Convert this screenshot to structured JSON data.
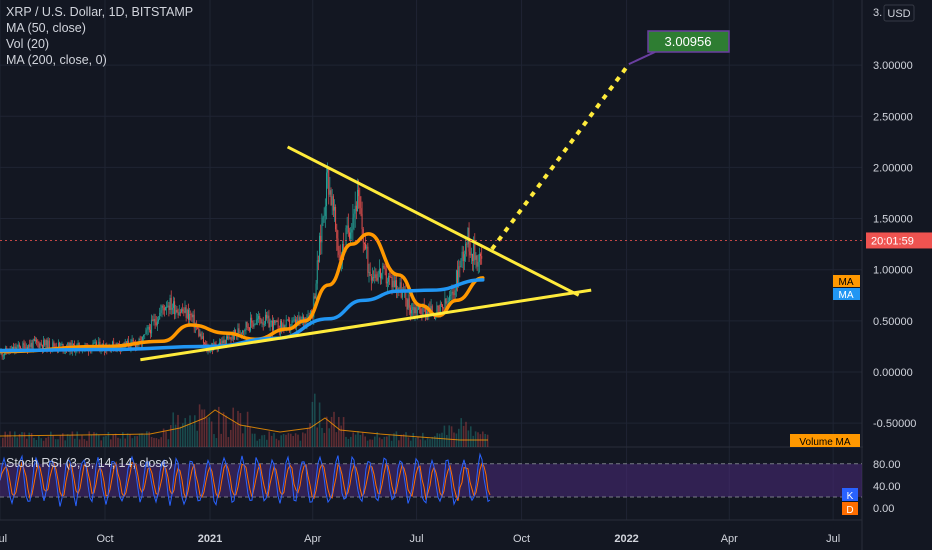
{
  "header": {
    "title": "XRP / U.S. Dollar, 1D, BITSTAMP",
    "indicators": [
      "MA (50, close)",
      "Vol (20)",
      "MA (200, close, 0)"
    ]
  },
  "price_axis": {
    "currency_label": "USD",
    "top_partial_label": "3.",
    "ticks": [
      "3.00000",
      "2.50000",
      "2.00000",
      "1.50000",
      "1.00000",
      "0.50000",
      "0.00000",
      "-0.50000"
    ]
  },
  "stoch_axis": {
    "ticks": [
      "80.00",
      "40.00",
      "0.00"
    ]
  },
  "time_axis": {
    "ticks": [
      "Jul",
      "Oct",
      "2021",
      "Apr",
      "Jul",
      "Oct",
      "2022",
      "Apr",
      "Jul"
    ]
  },
  "tags": {
    "target": "3.00956",
    "countdown": "20:01:59",
    "ma1": "MA",
    "ma2": "MA",
    "volume_ma": "Volume MA",
    "k": "K",
    "d": "D"
  },
  "stoch_panel": {
    "title": "Stoch RSI (3, 3, 14, 14, close)",
    "upper_band": 80,
    "lower_band": 20
  },
  "colors": {
    "background": "#131722",
    "grid": "#1f2433",
    "text": "#d1d4dc",
    "trendline": "#ffeb3b",
    "ma50": "#ff9800",
    "ma200": "#2196f3",
    "candle_up": "#26a69a",
    "candle_down": "#ef5350",
    "target_box": "#2e7d32",
    "stoch_bg": "#4a2a7a",
    "k_line": "#2962ff",
    "d_line": "#ff6d00",
    "countdown_tag": "#ef5350"
  },
  "chart_data": {
    "type": "line",
    "symbol": "XRP / U.S. Dollar, 1D, BITSTAMP",
    "ylim": [
      -0.75,
      3.1
    ],
    "y_ticks": [
      3.0,
      2.5,
      2.0,
      1.5,
      1.0,
      0.5,
      0.0,
      -0.5
    ],
    "x_ticks": [
      "Jul",
      "Oct",
      "2021",
      "Apr",
      "Jul",
      "Oct",
      "2022",
      "Apr",
      "Jul"
    ],
    "price_approx": {
      "dates": [
        "2020-07-01",
        "2020-08-01",
        "2020-09-01",
        "2020-10-01",
        "2020-11-01",
        "2020-11-24",
        "2020-12-15",
        "2020-12-29",
        "2021-01-15",
        "2021-02-01",
        "2021-02-15",
        "2021-03-01",
        "2021-03-20",
        "2021-04-01",
        "2021-04-14",
        "2021-04-25",
        "2021-05-10",
        "2021-05-20",
        "2021-06-01",
        "2021-06-15",
        "2021-06-25",
        "2021-07-10",
        "2021-07-20",
        "2021-08-01",
        "2021-08-14",
        "2021-08-20",
        "2021-08-28"
      ],
      "values": [
        0.18,
        0.28,
        0.24,
        0.25,
        0.28,
        0.68,
        0.55,
        0.22,
        0.3,
        0.45,
        0.52,
        0.44,
        0.48,
        0.6,
        1.95,
        1.1,
        1.7,
        1.0,
        0.95,
        0.85,
        0.63,
        0.6,
        0.58,
        0.73,
        1.32,
        1.15,
        1.1
      ]
    },
    "series": [
      {
        "name": "MA (50, close)",
        "color": "#ff9800",
        "dates": [
          "2020-07-01",
          "2020-10-01",
          "2020-11-20",
          "2020-12-15",
          "2021-01-15",
          "2021-02-10",
          "2021-03-10",
          "2021-03-25",
          "2021-04-15",
          "2021-05-05",
          "2021-05-20",
          "2021-06-15",
          "2021-07-05",
          "2021-07-20",
          "2021-08-05",
          "2021-08-28"
        ],
        "values": [
          0.2,
          0.25,
          0.3,
          0.46,
          0.38,
          0.32,
          0.42,
          0.5,
          0.85,
          1.25,
          1.35,
          0.95,
          0.65,
          0.55,
          0.7,
          0.92
        ]
      },
      {
        "name": "MA (200, close, 0)",
        "color": "#2196f3",
        "dates": [
          "2020-07-01",
          "2020-10-01",
          "2021-01-01",
          "2021-03-01",
          "2021-04-15",
          "2021-05-15",
          "2021-06-15",
          "2021-07-15",
          "2021-08-28"
        ],
        "values": [
          0.21,
          0.22,
          0.25,
          0.33,
          0.52,
          0.7,
          0.79,
          0.8,
          0.9
        ]
      }
    ],
    "trendlines": [
      {
        "from": {
          "x": "2021-03-10",
          "y": 2.2
        },
        "to": {
          "x": "2021-11-20",
          "y": 0.75
        }
      },
      {
        "from": {
          "x": "2020-11-01",
          "y": 0.12
        },
        "to": {
          "x": "2021-12-01",
          "y": 0.8
        }
      },
      {
        "style": "dotted",
        "from": {
          "x": "2021-09-05",
          "y": 1.2
        },
        "to": {
          "x": "2022-01-03",
          "y": 3.00956
        }
      }
    ],
    "annotations": [
      {
        "x": "2022-01-03",
        "y": 3.00956,
        "text": "3.00956"
      }
    ],
    "last_price": 1.1,
    "volume_panel": {
      "label": "Volume MA"
    },
    "stoch_rsi": {
      "name": "Stoch RSI (3, 3, 14, 14, close)",
      "ylim": [
        -10,
        100
      ],
      "bands": [
        20,
        80
      ],
      "y_ticks": [
        80,
        40,
        0
      ]
    }
  }
}
